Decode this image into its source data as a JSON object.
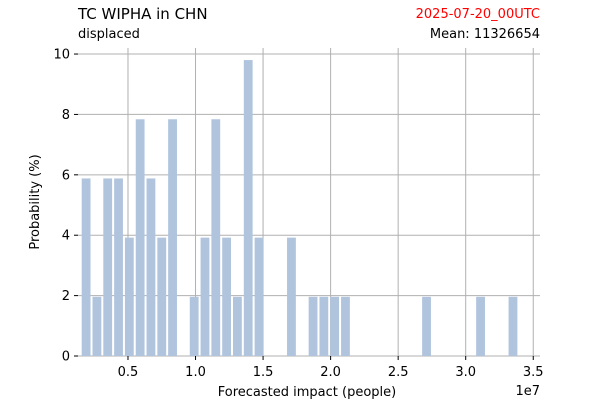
{
  "header": {
    "title": "TC WIPHA in CHN",
    "subtitle": "displaced",
    "timestamp": "2025-07-20_00UTC",
    "mean_label": "Mean: 11326654"
  },
  "colors": {
    "bar": "#b0c4de",
    "grid": "#b0b0b0",
    "timestamp": "#ff0000"
  },
  "chart_data": {
    "type": "bar",
    "xlabel": "Forecasted impact (people)",
    "ylabel": "Probability (%)",
    "x_offset_label": "1e7",
    "xlim": [
      0.13,
      3.55
    ],
    "ylim": [
      0,
      10.2
    ],
    "x_ticks": [
      0.5,
      1.0,
      1.5,
      2.0,
      2.5,
      3.0,
      3.5
    ],
    "x_tick_labels": [
      "0.5",
      "1.0",
      "1.5",
      "2.0",
      "2.5",
      "3.0",
      "3.5"
    ],
    "y_ticks": [
      0,
      2,
      4,
      6,
      8,
      10
    ],
    "y_tick_labels": [
      "0",
      "2",
      "4",
      "6",
      "8",
      "10"
    ],
    "grid": true,
    "bin_width": 0.08,
    "bars": [
      {
        "x": 0.19,
        "value": 5.88
      },
      {
        "x": 0.27,
        "value": 1.96
      },
      {
        "x": 0.35,
        "value": 5.88
      },
      {
        "x": 0.43,
        "value": 5.88
      },
      {
        "x": 0.51,
        "value": 3.92
      },
      {
        "x": 0.59,
        "value": 7.84
      },
      {
        "x": 0.67,
        "value": 5.88
      },
      {
        "x": 0.75,
        "value": 3.92
      },
      {
        "x": 0.83,
        "value": 7.84
      },
      {
        "x": 0.99,
        "value": 1.96
      },
      {
        "x": 1.07,
        "value": 3.92
      },
      {
        "x": 1.15,
        "value": 7.84
      },
      {
        "x": 1.23,
        "value": 3.92
      },
      {
        "x": 1.31,
        "value": 1.96
      },
      {
        "x": 1.39,
        "value": 9.8
      },
      {
        "x": 1.47,
        "value": 3.92
      },
      {
        "x": 1.71,
        "value": 3.92
      },
      {
        "x": 1.87,
        "value": 1.96
      },
      {
        "x": 1.95,
        "value": 1.96
      },
      {
        "x": 2.03,
        "value": 1.96
      },
      {
        "x": 2.11,
        "value": 1.96
      },
      {
        "x": 2.71,
        "value": 1.96
      },
      {
        "x": 3.11,
        "value": 1.96
      },
      {
        "x": 3.35,
        "value": 1.96
      }
    ]
  }
}
